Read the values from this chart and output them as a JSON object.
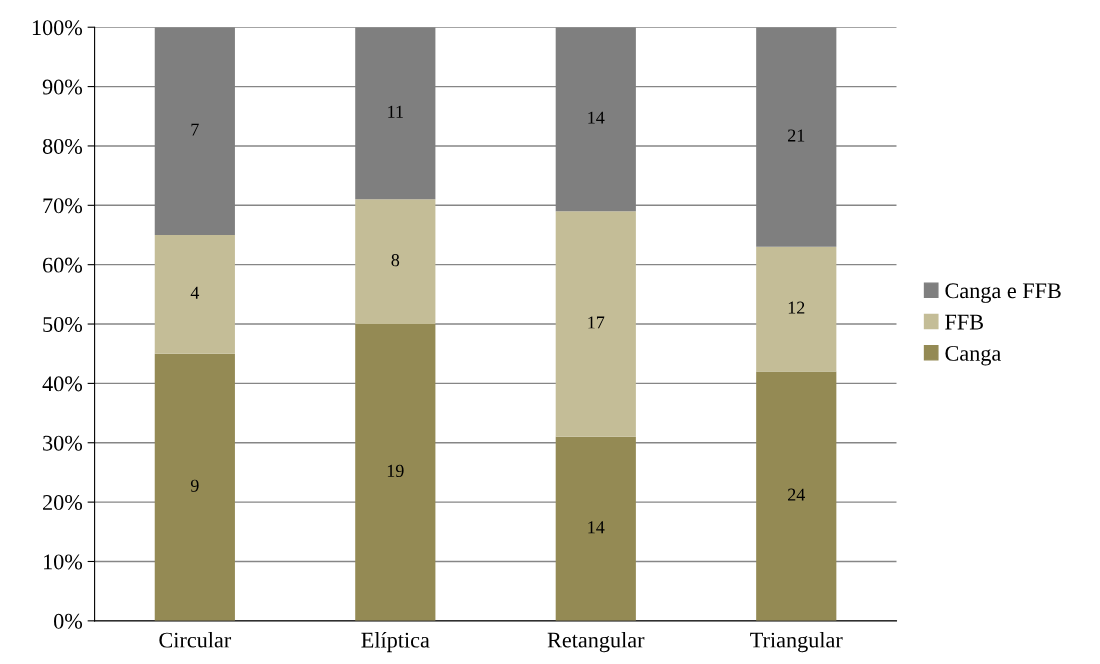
{
  "chart_data": {
    "type": "bar",
    "stacked": true,
    "categories": [
      "Circular",
      "Elíptica",
      "Retangular",
      "Triangular"
    ],
    "series": [
      {
        "name": "Canga",
        "color": "#948a54",
        "values": [
          45,
          50,
          31,
          42
        ]
      },
      {
        "name": "FFB",
        "color": "#c4bd97",
        "values": [
          20,
          21,
          38,
          21
        ]
      },
      {
        "name": "Canga e FFB",
        "color": "#7f7f7f",
        "values": [
          35,
          29,
          31,
          37
        ]
      }
    ],
    "annotations": [
      "9",
      "4",
      "7",
      "19",
      "8",
      "11",
      "14",
      "17",
      "14",
      "24",
      "12",
      "21"
    ],
    "ylim": [
      0,
      100
    ],
    "yticks": [
      {
        "value": 0,
        "label": "0%"
      },
      {
        "value": 10,
        "label": "10%"
      },
      {
        "value": 20,
        "label": "20%"
      },
      {
        "value": 30,
        "label": "30%"
      },
      {
        "value": 40,
        "label": "40%"
      },
      {
        "value": 50,
        "label": "50%"
      },
      {
        "value": 60,
        "label": "60%"
      },
      {
        "value": 70,
        "label": "70%"
      },
      {
        "value": 80,
        "label": "80%"
      },
      {
        "value": 90,
        "label": "90%"
      },
      {
        "value": 100,
        "label": "100%"
      }
    ],
    "grid": "y",
    "legend": "right"
  }
}
